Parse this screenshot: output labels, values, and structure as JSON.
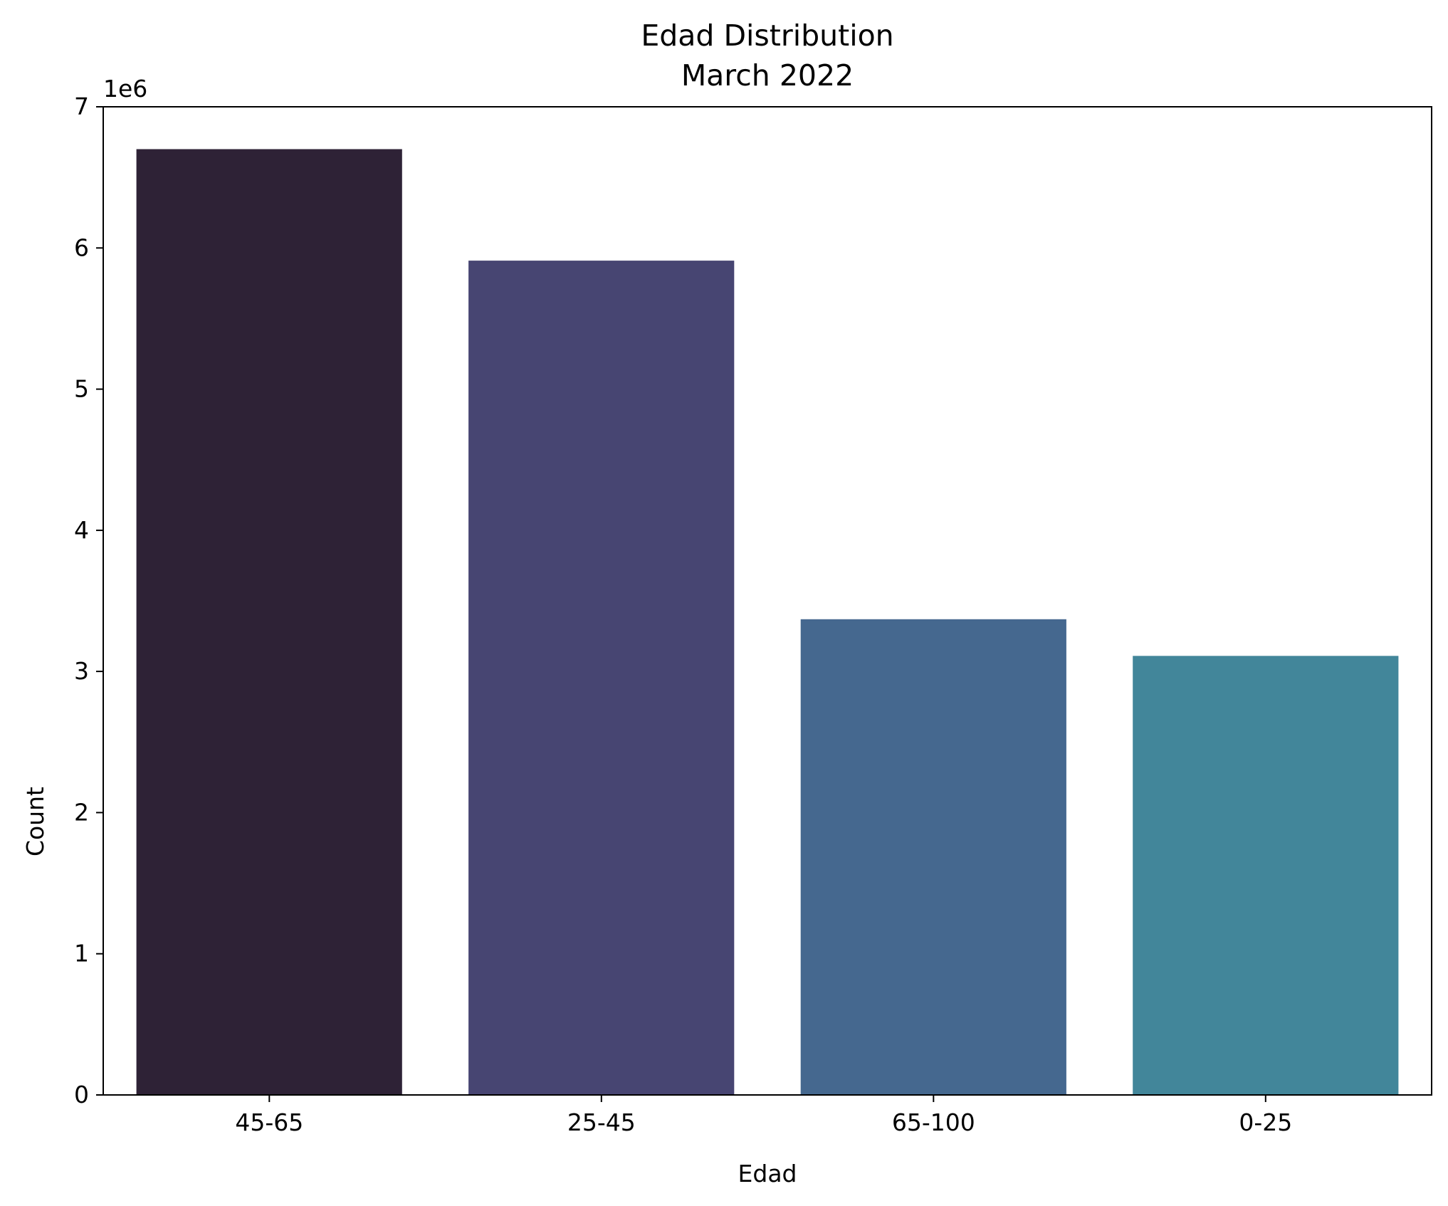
{
  "chart_data": {
    "type": "bar",
    "title": "Edad Distribution",
    "subtitle": "March 2022",
    "xlabel": "Edad",
    "ylabel": "Count",
    "y_offset_label": "1e6",
    "categories": [
      "45-65",
      "25-45",
      "65-100",
      "0-25"
    ],
    "values": [
      6700000,
      5910000,
      3370000,
      3110000
    ],
    "colors": [
      "#2e2236",
      "#474572",
      "#45688f",
      "#42869a"
    ],
    "ylim": [
      0,
      7000000
    ],
    "y_ticks": [
      0,
      1000000,
      2000000,
      3000000,
      4000000,
      5000000,
      6000000,
      7000000
    ],
    "y_tick_labels": [
      "0",
      "1",
      "2",
      "3",
      "4",
      "5",
      "6",
      "7"
    ],
    "grid": false,
    "legend": "none"
  }
}
